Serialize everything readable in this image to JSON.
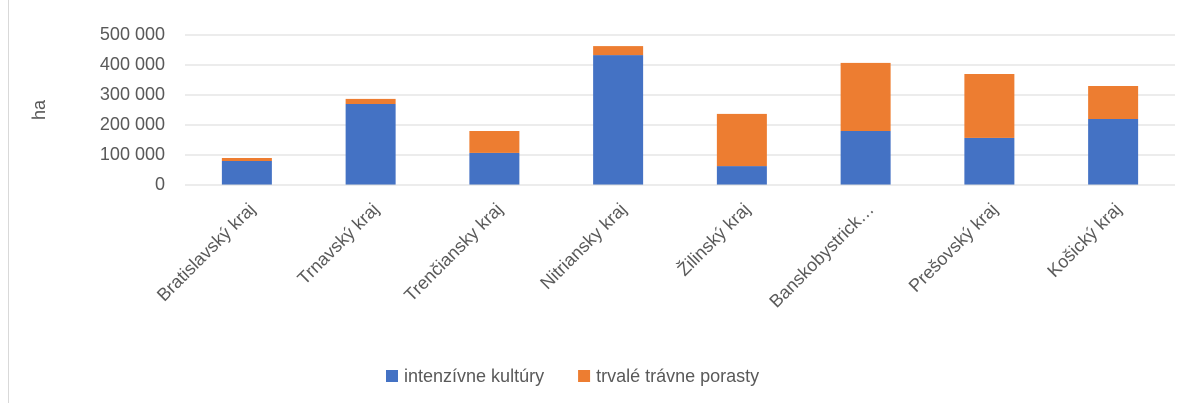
{
  "chart_data": {
    "type": "stacked_bar",
    "categories": [
      "Bratislavský kraj",
      "Trnavský kraj",
      "Trenčiansky kraj",
      "Nitriansky kraj",
      "Žilinský kraj",
      "Banskobystrick…",
      "Prešovský kraj",
      "Košický kraj"
    ],
    "series": [
      {
        "name": "intenzívne kultúry",
        "color": "#4472c4",
        "values": [
          80000,
          270000,
          107000,
          433000,
          63000,
          180000,
          157000,
          220000
        ]
      },
      {
        "name": "trvalé trávne porasty",
        "color": "#ed7d31",
        "values": [
          10000,
          17000,
          73000,
          30000,
          174000,
          227000,
          213000,
          110000
        ]
      }
    ],
    "ylabel": "ha",
    "ylim": [
      0,
      500000
    ],
    "yticks": [
      0,
      {
        "value": 100000,
        "label": "100 000"
      },
      {
        "value": 200000,
        "label": "200 000"
      },
      {
        "value": 300000,
        "label": "300 000"
      },
      {
        "value": 400000,
        "label": "400 000"
      },
      {
        "value": 500000,
        "label": "500 000"
      }
    ],
    "grid": true,
    "legend": "bottom"
  }
}
